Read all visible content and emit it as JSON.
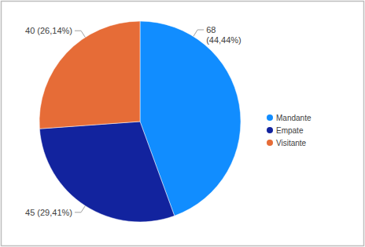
{
  "chart_data": {
    "type": "pie",
    "categories": [
      "Mandante",
      "Empate",
      "Visitante"
    ],
    "values": [
      68,
      45,
      40
    ],
    "value_labels": [
      "68 (44,44%)",
      "45 (29,41%)",
      "40 (26,14%)"
    ],
    "colors": [
      "#118DFF",
      "#12239E",
      "#E66C37"
    ],
    "legend": "right",
    "data_labels": true
  }
}
